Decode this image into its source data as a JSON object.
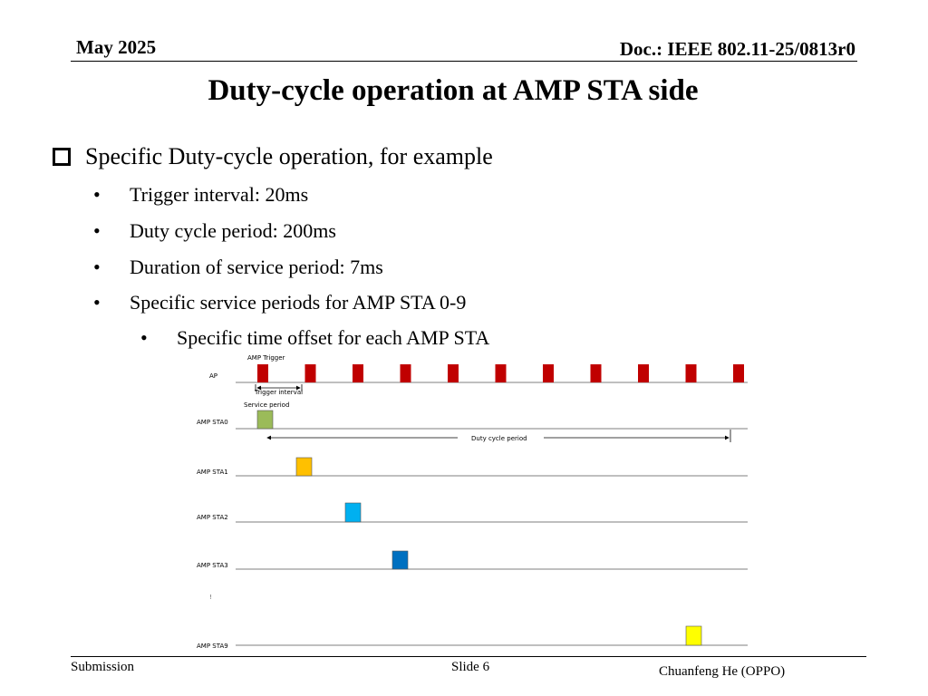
{
  "header": {
    "date": "May 2025",
    "doc": "Doc.: IEEE 802.11-25/0813r0"
  },
  "title": "Duty-cycle operation at AMP STA side",
  "bullets": {
    "main": "Specific Duty-cycle operation, for example",
    "items": [
      "Trigger interval: 20ms",
      "Duty cycle period: 200ms",
      "Duration of service period: 7ms",
      "Specific service periods for AMP STA 0-9"
    ],
    "subitem": "Specific time offset for each AMP STA",
    "bullet_char": "•"
  },
  "diagram": {
    "labels": {
      "amp_trigger": "AMP Trigger",
      "trigger_interval": "Trigger interval",
      "service_period": "Service period",
      "duty_cycle_period": "Duty cycle period",
      "ellipsis_mark": "!"
    },
    "colors": {
      "trigger": "#c00000",
      "sta0": "#9bbb59",
      "sta1": "#ffc000",
      "sta2": "#00b0f0",
      "sta3": "#0070c0",
      "sta9": "#ffff00"
    },
    "trigger_count": 11,
    "rows": [
      {
        "name": "AP"
      },
      {
        "name": "AMP STA0"
      },
      {
        "name": "AMP STA1"
      },
      {
        "name": "AMP STA2"
      },
      {
        "name": "AMP STA3"
      },
      {
        "name": "AMP STA9"
      }
    ]
  },
  "footer": {
    "left": "Submission",
    "center": "Slide 6",
    "right": "Chuanfeng He (OPPO)"
  }
}
